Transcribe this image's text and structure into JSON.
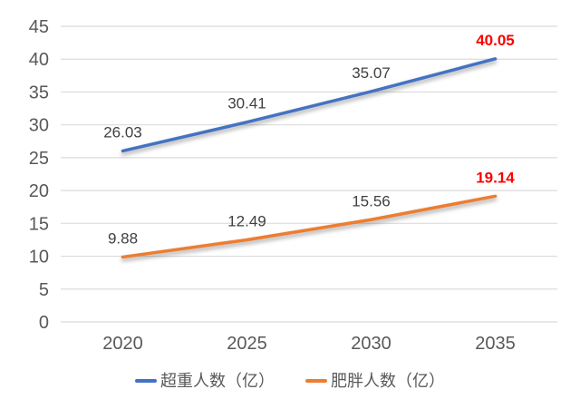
{
  "chart_data": {
    "type": "line",
    "title": "",
    "categories": [
      "2020",
      "2025",
      "2030",
      "2035"
    ],
    "series": [
      {
        "key": "overweight",
        "name": "超重人数（亿）",
        "color": "#4472C4",
        "values": [
          26.03,
          30.41,
          35.07,
          40.05
        ]
      },
      {
        "key": "obese",
        "name": "肥胖人数（亿）",
        "color": "#ED7D31",
        "values": [
          9.88,
          12.49,
          15.56,
          19.14
        ]
      }
    ],
    "ylim": [
      0,
      45
    ],
    "ytick_step": 5,
    "grid": true,
    "legend_position": "bottom",
    "styles": {
      "last_label_color": "#FF0000",
      "data_label_color": "#404040",
      "axis_text_color": "#595959",
      "grid_color": "#DBDBDB",
      "background": "#FFFFFF"
    }
  }
}
